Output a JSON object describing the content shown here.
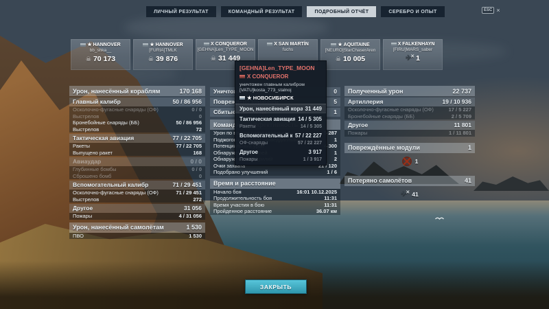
{
  "window": {
    "esc_label": "ESC",
    "esc_close": "×"
  },
  "icons": {
    "damage": "☠",
    "plane": "✈",
    "cross": "✕"
  },
  "tabs": [
    {
      "label": "ЛИЧНЫЙ РЕЗУЛЬТАТ",
      "active": false
    },
    {
      "label": "КОМАНДНЫЙ РЕЗУЛЬТАТ",
      "active": false
    },
    {
      "label": "ПОДРОБНЫЙ ОТЧЁТ",
      "active": true
    },
    {
      "label": "СЕРЕБРО И ОПЫТ",
      "active": false
    }
  ],
  "ship_cards": [
    {
      "tier": "★",
      "name": "HANNOVER",
      "player": "bb_shka__",
      "value": "70 173",
      "icon": "damage"
    },
    {
      "tier": "★",
      "name": "HANNOVER",
      "player": "[FURIA]TMLK",
      "value": "39 876",
      "icon": "damage"
    },
    {
      "tier": "X",
      "name": "CONQUEROR",
      "player": "[GEHNA]Len_TYPE_MOON",
      "value": "31 449",
      "icon": "damage"
    },
    {
      "tier": "X",
      "name": "SAN MARTÍN",
      "player": "fuchs",
      "value": "",
      "icon": "none"
    },
    {
      "tier": "★",
      "name": "AQUITAINE",
      "player": "[NEURO]StarChaserAren",
      "value": "10 005",
      "icon": "damage"
    },
    {
      "tier": "X",
      "name": "FALKENHAYN",
      "player": "[FIRU]MARS_saber",
      "value": "1",
      "icon": "plane-kill"
    }
  ],
  "tooltip": {
    "player": "[GEHNA]Len_TYPE_MOON",
    "ship": "X CONQUEROR",
    "kill_text": "уничтожен главным калибром",
    "killer_player": "[VATU]kosta_773_stalnoj",
    "killer_ship": "★ НОВОСИБИРСК",
    "rows": [
      {
        "style": "theader",
        "label": "Урон, нанесённый кораблям",
        "value": "31 449"
      },
      {
        "style": "tsub",
        "label": "Тактическая авиация",
        "value": "14 / 5 305"
      },
      {
        "style": "tdim",
        "label": "Ракеты",
        "value": "14 / 5 305"
      },
      {
        "style": "tsub",
        "label": "Вспомогательный калибр",
        "value": "57 / 22 227"
      },
      {
        "style": "tdim",
        "label": "ОФ-снаряды",
        "value": "57 / 22 227"
      },
      {
        "style": "tsub",
        "label": "Другое",
        "value": "3 917"
      },
      {
        "style": "tdim",
        "label": "Пожары",
        "value": "1 / 3 917"
      }
    ]
  },
  "left_panel": {
    "rows": [
      {
        "style": "header",
        "label": "Урон, нанесённый кораблям",
        "value": "170 168"
      },
      {
        "style": "sub",
        "label": "Главный калибр",
        "value": "50 / 86 956"
      },
      {
        "style": "dim",
        "label": "Осколочно-фугасные снаряды (ОФ)",
        "value": "0 / 0"
      },
      {
        "style": "dim",
        "label": "Выстрелов",
        "value": "0"
      },
      {
        "style": "item",
        "label": "Бронебойные снаряды (ББ)",
        "value": "50 / 86 956"
      },
      {
        "style": "item",
        "label": "Выстрелов",
        "value": "72"
      },
      {
        "style": "sub",
        "label": "Тактическая авиация",
        "value": "77 / 22 705"
      },
      {
        "style": "item",
        "label": "Ракеты",
        "value": "77 / 22 705"
      },
      {
        "style": "item",
        "label": "Выпущено ракет",
        "value": "168"
      },
      {
        "style": "subdim",
        "label": "Авиаудар",
        "value": "0 / 0"
      },
      {
        "style": "dim",
        "label": "Глубинные бомбы",
        "value": "0 / 0"
      },
      {
        "style": "dim",
        "label": "Сброшено бомб",
        "value": "0"
      },
      {
        "style": "sub",
        "label": "Вспомогательный калибр",
        "value": "71 / 29 451"
      },
      {
        "style": "item",
        "label": "Осколочно-фугасные снаряды (ОФ)",
        "value": "71 / 29 451"
      },
      {
        "style": "item",
        "label": "Выстрелов",
        "value": "272"
      },
      {
        "style": "sub",
        "label": "Другое",
        "value": "31 056"
      },
      {
        "style": "item",
        "label": "Пожары",
        "value": "4 / 31 056"
      },
      {
        "style": "header",
        "label": "Урон, нанесённый самолётам",
        "value": "1 530"
      },
      {
        "style": "item",
        "label": "ПВО",
        "value": "1 530"
      }
    ]
  },
  "middle_panel": {
    "rows": [
      {
        "style": "sub",
        "label": "Уничтожено кораблей",
        "value": "0"
      },
      {
        "style": "sub",
        "label": "Повреждено кораблей",
        "value": "5"
      },
      {
        "style": "sub",
        "label": "Сбитые самолёты",
        "value": "1"
      },
      {
        "style": "header",
        "label": "Командная эффективность",
        "value": ""
      },
      {
        "style": "item",
        "label": "Урон по вашим разведданным",
        "value": "5 287"
      },
      {
        "style": "item",
        "label": "Поджогов по вашим разведданным",
        "value": "1"
      },
      {
        "style": "item",
        "label": "Потенциальный урон",
        "value": "4 300"
      },
      {
        "style": "item",
        "label": "Обнаружено кораблей",
        "value": "1"
      },
      {
        "style": "item",
        "label": "Обнаружено эскадрилий",
        "value": "2"
      },
      {
        "style": "item",
        "label": "Очки захвата",
        "value": "21 / 120"
      },
      {
        "style": "item",
        "label": "Подобрано улучшений",
        "value": "1 / 6"
      },
      {
        "style": "header",
        "label": "Время и расстояние",
        "value": ""
      },
      {
        "style": "item",
        "label": "Начало боя",
        "value": "16:01 10.12.2025"
      },
      {
        "style": "item",
        "label": "Продолжительность боя",
        "value": "11:31"
      },
      {
        "style": "item",
        "label": "Время участия в бою",
        "value": "11:31"
      },
      {
        "style": "item",
        "label": "Пройденное расстояние",
        "value": "36.07 км"
      }
    ]
  },
  "right_panel": {
    "rows": [
      {
        "style": "header",
        "label": "Полученный урон",
        "value": "22 737"
      },
      {
        "style": "sub",
        "label": "Артиллерия",
        "value": "19 / 10 936"
      },
      {
        "style": "dim",
        "label": "Осколочно-фугасные снаряды (ОФ)",
        "value": "17 / 5 227"
      },
      {
        "style": "dim",
        "label": "Бронебойные снаряды (ББ)",
        "value": "2 / 5 709"
      },
      {
        "style": "sub",
        "label": "Другое",
        "value": "11 801"
      },
      {
        "style": "dim",
        "label": "Пожары",
        "value": "1 / 11 801"
      },
      {
        "style": "header",
        "label": "Повреждённые модули",
        "value": "1"
      },
      {
        "style": "icons",
        "icon": "damaged-module-icon",
        "value": "1"
      },
      {
        "style": "header",
        "label": "Потеряно самолётов",
        "value": "41"
      },
      {
        "style": "icons",
        "icon": "plane-lost-icon",
        "value": "41"
      }
    ]
  },
  "close_button": {
    "label": "ЗАКРЫТЬ"
  },
  "colors": {
    "accent": "#3fb0c9",
    "enemy_name": "#e2726b",
    "module_red": "#8c2a16",
    "active_tab": "#ccd3d9"
  }
}
